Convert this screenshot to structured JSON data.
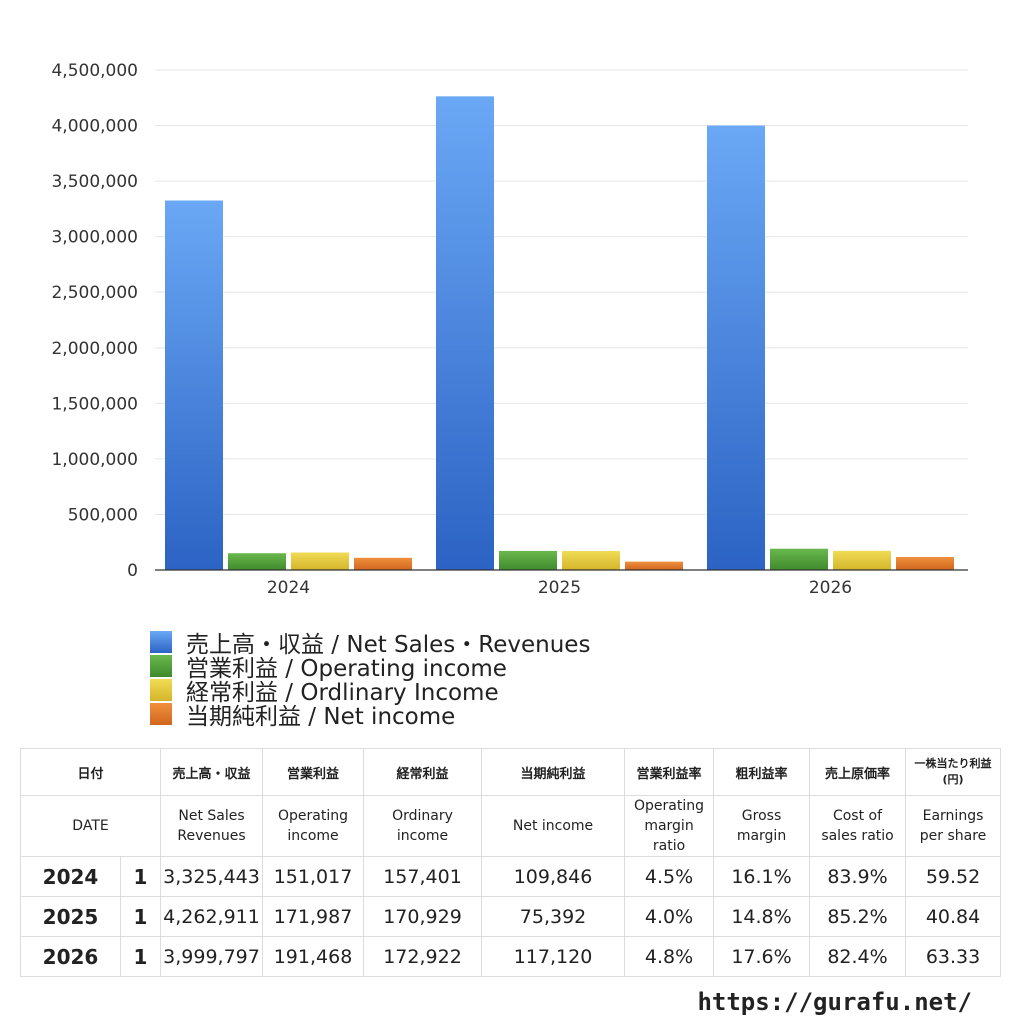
{
  "chart_data": {
    "type": "bar",
    "categories": [
      "2024",
      "2025",
      "2026"
    ],
    "series": [
      {
        "name": "売上高・収益 / Net Sales・Revenues",
        "values": [
          3325443,
          4262911,
          3999797
        ],
        "color": "#3d7fe0"
      },
      {
        "name": "営業利益 / Operating income",
        "values": [
          151017,
          171987,
          191468
        ],
        "color": "#4e9e3a"
      },
      {
        "name": "経常利益 / Ordlinary Income",
        "values": [
          157401,
          170929,
          172922
        ],
        "color": "#e0c63a"
      },
      {
        "name": "当期純利益 / Net income",
        "values": [
          109846,
          75392,
          117120
        ],
        "color": "#e07a2c"
      }
    ],
    "ylim": [
      0,
      4500000
    ],
    "yticks": [
      "0",
      "500,000",
      "1,000,000",
      "1,500,000",
      "2,000,000",
      "2,500,000",
      "3,000,000",
      "3,500,000",
      "4,000,000",
      "4,500,000"
    ],
    "ytick_values": [
      0,
      500000,
      1000000,
      1500000,
      2000000,
      2500000,
      3000000,
      3500000,
      4000000,
      4500000
    ],
    "grid": true,
    "legend_position": "bottom-left"
  },
  "table": {
    "headers_ja": [
      "日付",
      "売上高・収益",
      "営業利益",
      "経常利益",
      "当期純利益",
      "営業利益率",
      "粗利益率",
      "売上原価率",
      "一株当たり利益\n(円)"
    ],
    "headers_en": [
      "DATE",
      "Net Sales\nRevenues",
      "Operating\nincome",
      "Ordinary\nincome",
      "Net income",
      "Operating\nmargin\nratio",
      "Gross\nmargin",
      "Cost of\nsales ratio",
      "Earnings\nper share"
    ],
    "rows": [
      {
        "year": "2024",
        "q": "1",
        "cells": [
          "3,325,443",
          "151,017",
          "157,401",
          "109,846",
          "4.5%",
          "16.1%",
          "83.9%",
          "59.52"
        ]
      },
      {
        "year": "2025",
        "q": "1",
        "cells": [
          "4,262,911",
          "171,987",
          "170,929",
          "75,392",
          "4.0%",
          "14.8%",
          "85.2%",
          "40.84"
        ]
      },
      {
        "year": "2026",
        "q": "1",
        "cells": [
          "3,999,797",
          "191,468",
          "172,922",
          "117,120",
          "4.8%",
          "17.6%",
          "82.4%",
          "63.33"
        ]
      }
    ]
  },
  "footer": {
    "url": "https://gurafu.net/"
  }
}
